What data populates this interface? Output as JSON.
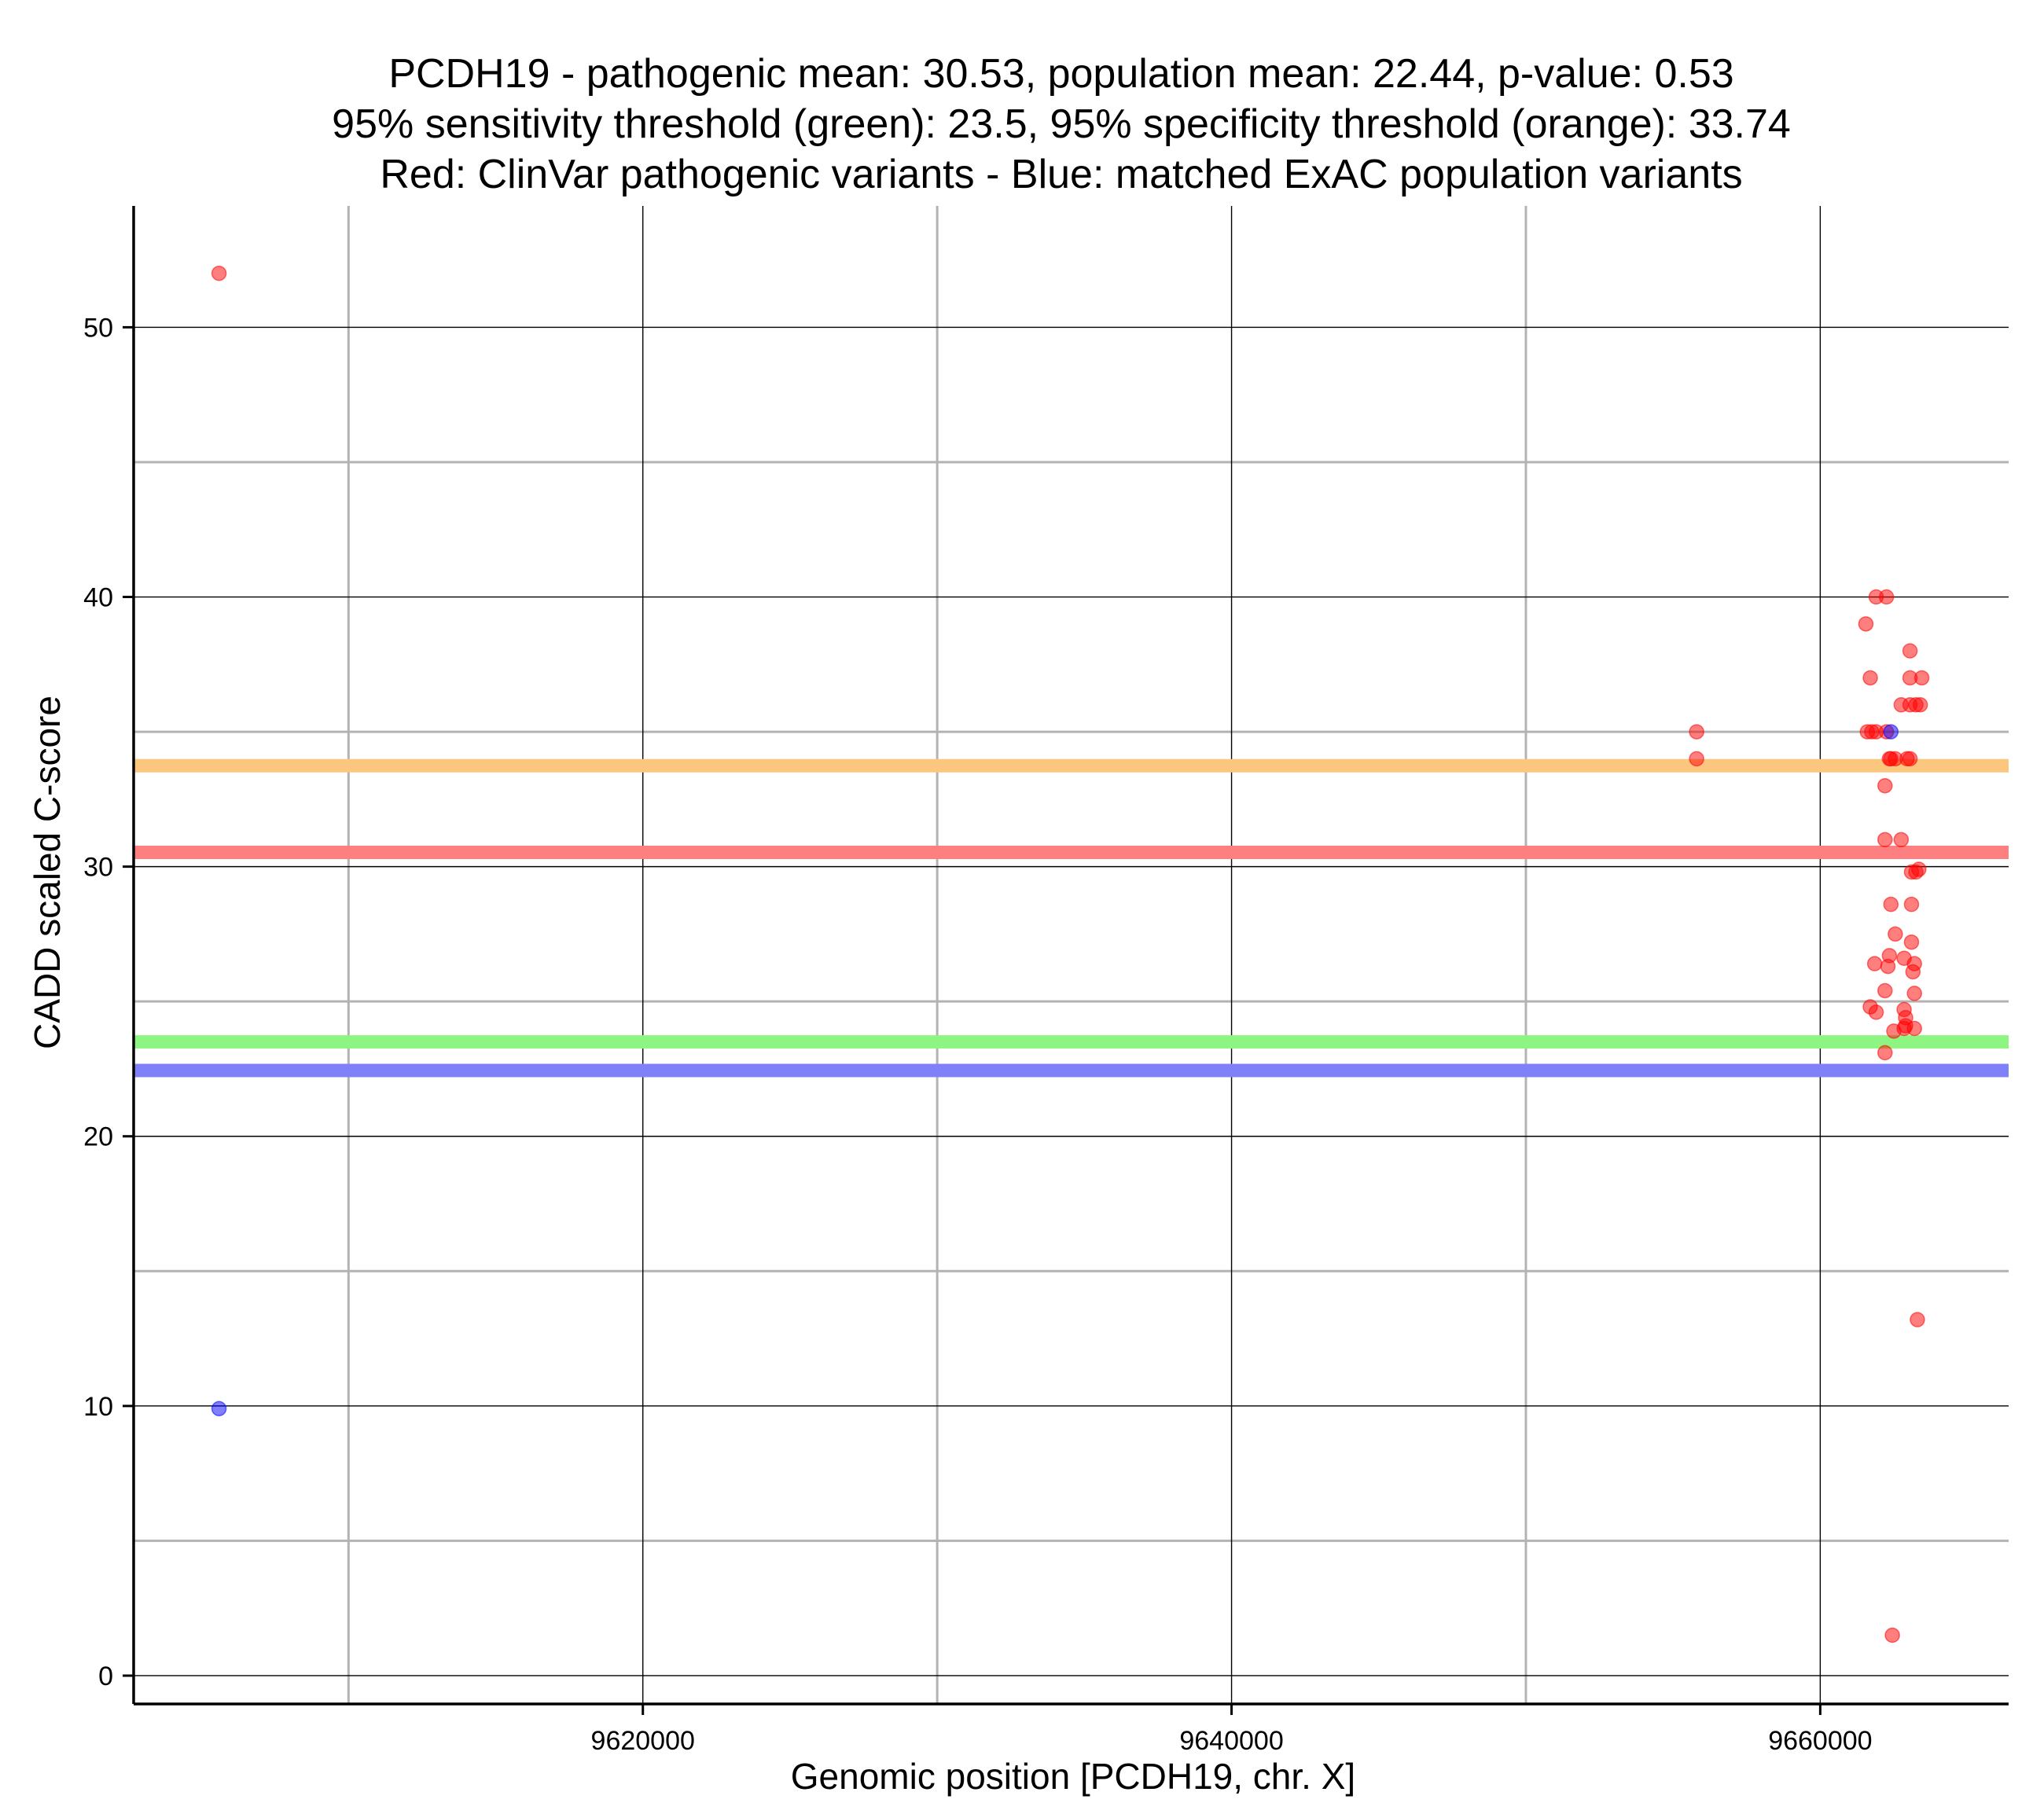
{
  "chart_data": {
    "type": "scatter",
    "title_lines": [
      "PCDH19 - pathogenic mean: 30.53, population mean: 22.44, p-value: 0.53",
      "95% sensitivity threshold (green): 23.5, 95% specificity threshold (orange): 33.74",
      "Red: ClinVar pathogenic variants - Blue: matched ExAC population variants"
    ],
    "xlabel": "Genomic position [PCDH19, chr. X]",
    "ylabel": "CADD scaled C-score",
    "xlim": [
      9602700,
      9666400
    ],
    "ylim": [
      -1.05,
      54.5
    ],
    "x_ticks": [
      9620000,
      9640000,
      9660000
    ],
    "y_ticks": [
      0,
      10,
      20,
      30,
      40,
      50
    ],
    "grid": true,
    "legend": "none",
    "reference_lines": [
      {
        "name": "specificity threshold",
        "value": 33.74,
        "color": "#fbc77e"
      },
      {
        "name": "pathogenic mean",
        "value": 30.53,
        "color": "#fe7f7f"
      },
      {
        "name": "sensitivity threshold",
        "value": 23.5,
        "color": "#8ff582"
      },
      {
        "name": "population mean",
        "value": 22.44,
        "color": "#8080f9"
      }
    ],
    "series": [
      {
        "color": "#ff0000",
        "points": [
          [
            9605600,
            52.0
          ],
          [
            9655800,
            35.0
          ],
          [
            9655800,
            34.0
          ],
          [
            9661550,
            39.0
          ],
          [
            9661700,
            37.0
          ],
          [
            9661600,
            35.0
          ],
          [
            9661750,
            35.0
          ],
          [
            9661900,
            35.0
          ],
          [
            9661900,
            40.0
          ],
          [
            9662250,
            40.0
          ],
          [
            9662250,
            35.0
          ],
          [
            9662350,
            34.0
          ],
          [
            9662400,
            34.0
          ],
          [
            9662550,
            34.0
          ],
          [
            9662950,
            34.0
          ],
          [
            9663050,
            34.0
          ],
          [
            9662750,
            36.0
          ],
          [
            9663050,
            36.0
          ],
          [
            9663250,
            36.0
          ],
          [
            9663400,
            36.0
          ],
          [
            9663050,
            37.0
          ],
          [
            9663450,
            37.0
          ],
          [
            9663050,
            38.0
          ],
          [
            9662200,
            33.0
          ],
          [
            9662200,
            31.0
          ],
          [
            9662750,
            31.0
          ],
          [
            9663100,
            29.8
          ],
          [
            9663250,
            29.8
          ],
          [
            9663350,
            29.9
          ],
          [
            9662400,
            28.6
          ],
          [
            9663100,
            28.6
          ],
          [
            9662550,
            27.5
          ],
          [
            9663100,
            27.2
          ],
          [
            9662850,
            26.6
          ],
          [
            9662350,
            26.7
          ],
          [
            9662300,
            26.3
          ],
          [
            9661850,
            26.4
          ],
          [
            9663200,
            26.4
          ],
          [
            9663150,
            26.1
          ],
          [
            9662200,
            25.4
          ],
          [
            9663200,
            25.3
          ],
          [
            9661700,
            24.8
          ],
          [
            9661900,
            24.6
          ],
          [
            9662850,
            24.7
          ],
          [
            9662900,
            24.4
          ],
          [
            9662900,
            24.1
          ],
          [
            9662850,
            24.0
          ],
          [
            9663200,
            24.0
          ],
          [
            9662500,
            23.9
          ],
          [
            9662200,
            23.1
          ],
          [
            9663300,
            13.2
          ],
          [
            9662450,
            1.5
          ]
        ]
      },
      {
        "color": "#0000ff",
        "points": [
          [
            9605600,
            9.9
          ],
          [
            9662400,
            35.0
          ]
        ]
      }
    ]
  }
}
